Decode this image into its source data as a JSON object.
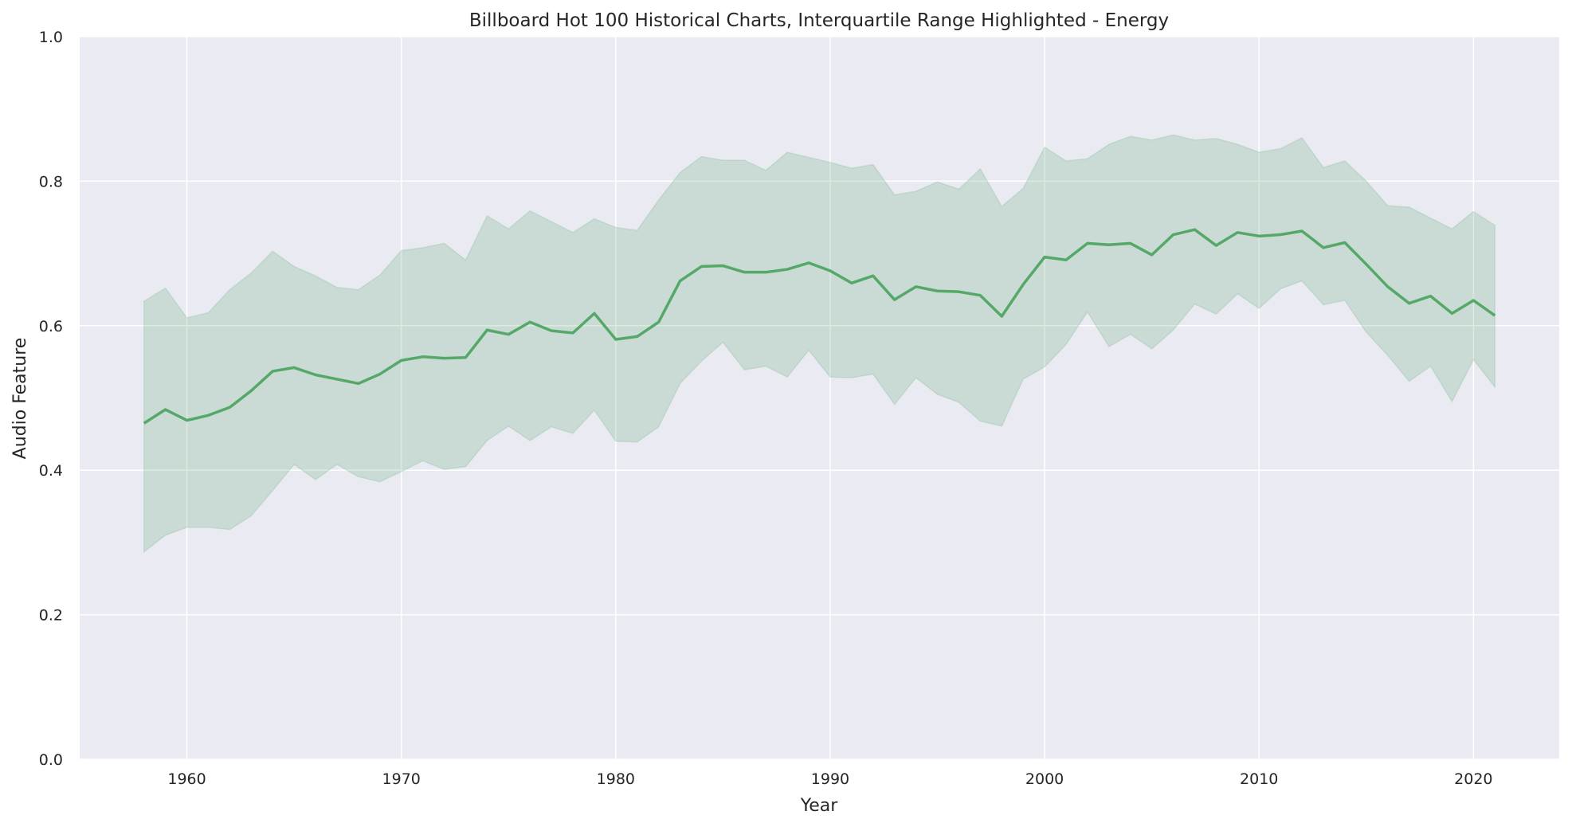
{
  "chart_data": {
    "type": "line",
    "title": "Billboard Hot 100 Historical Charts, Interquartile Range Highlighted - Energy",
    "xlabel": "Year",
    "ylabel": "Audio Feature",
    "xlim": [
      1955,
      2024
    ],
    "ylim": [
      0.0,
      1.0
    ],
    "xticks": [
      1960,
      1970,
      1980,
      1990,
      2000,
      2010,
      2020
    ],
    "xtick_labels": [
      "1960",
      "1970",
      "1980",
      "1990",
      "2000",
      "2010",
      "2020"
    ],
    "yticks": [
      0.0,
      0.2,
      0.4,
      0.6,
      0.8,
      1.0
    ],
    "ytick_labels": [
      "0.0",
      "0.2",
      "0.4",
      "0.6",
      "0.8",
      "1.0"
    ],
    "grid": true,
    "colors": {
      "background": "#eaeaf2",
      "grid": "#ffffff",
      "line": "#55a868",
      "band": "#55a868"
    },
    "x": [
      1958,
      1959,
      1960,
      1961,
      1962,
      1963,
      1964,
      1965,
      1966,
      1967,
      1968,
      1969,
      1970,
      1971,
      1972,
      1973,
      1974,
      1975,
      1976,
      1977,
      1978,
      1979,
      1980,
      1981,
      1982,
      1983,
      1984,
      1985,
      1986,
      1987,
      1988,
      1989,
      1990,
      1991,
      1992,
      1993,
      1994,
      1995,
      1996,
      1997,
      1998,
      1999,
      2000,
      2001,
      2002,
      2003,
      2004,
      2005,
      2006,
      2007,
      2008,
      2009,
      2010,
      2011,
      2012,
      2013,
      2014,
      2015,
      2016,
      2017,
      2018,
      2019,
      2020,
      2021
    ],
    "series": [
      {
        "role": "median",
        "values": [
          0.465,
          0.484,
          0.469,
          0.476,
          0.487,
          0.51,
          0.537,
          0.542,
          0.532,
          0.526,
          0.52,
          0.533,
          0.552,
          0.557,
          0.555,
          0.556,
          0.594,
          0.588,
          0.605,
          0.593,
          0.59,
          0.617,
          0.581,
          0.585,
          0.605,
          0.662,
          0.682,
          0.683,
          0.674,
          0.674,
          0.678,
          0.687,
          0.676,
          0.659,
          0.669,
          0.636,
          0.654,
          0.648,
          0.647,
          0.642,
          0.613,
          0.657,
          0.695,
          0.691,
          0.714,
          0.712,
          0.714,
          0.698,
          0.726,
          0.733,
          0.711,
          0.729,
          0.724,
          0.726,
          0.731,
          0.708,
          0.715,
          0.685,
          0.654,
          0.631,
          0.641,
          0.617,
          0.635,
          0.614
        ]
      },
      {
        "role": "upper-quartile",
        "values": [
          0.634,
          0.652,
          0.611,
          0.618,
          0.65,
          0.673,
          0.703,
          0.682,
          0.669,
          0.653,
          0.65,
          0.67,
          0.704,
          0.708,
          0.714,
          0.691,
          0.752,
          0.734,
          0.759,
          0.744,
          0.729,
          0.748,
          0.736,
          0.732,
          0.774,
          0.812,
          0.834,
          0.829,
          0.829,
          0.815,
          0.84,
          0.833,
          0.826,
          0.818,
          0.823,
          0.781,
          0.786,
          0.799,
          0.789,
          0.817,
          0.765,
          0.79,
          0.847,
          0.828,
          0.831,
          0.851,
          0.862,
          0.857,
          0.864,
          0.857,
          0.859,
          0.851,
          0.84,
          0.845,
          0.86,
          0.819,
          0.828,
          0.8,
          0.766,
          0.764,
          0.749,
          0.734,
          0.758,
          0.739
        ]
      },
      {
        "role": "lower-quartile",
        "values": [
          0.287,
          0.31,
          0.321,
          0.321,
          0.318,
          0.337,
          0.372,
          0.408,
          0.387,
          0.408,
          0.391,
          0.384,
          0.398,
          0.413,
          0.401,
          0.405,
          0.441,
          0.461,
          0.441,
          0.46,
          0.451,
          0.483,
          0.44,
          0.439,
          0.46,
          0.52,
          0.551,
          0.577,
          0.539,
          0.544,
          0.529,
          0.566,
          0.529,
          0.528,
          0.533,
          0.491,
          0.528,
          0.505,
          0.494,
          0.468,
          0.461,
          0.526,
          0.543,
          0.574,
          0.619,
          0.571,
          0.588,
          0.568,
          0.594,
          0.63,
          0.616,
          0.644,
          0.624,
          0.651,
          0.662,
          0.629,
          0.635,
          0.591,
          0.559,
          0.523,
          0.544,
          0.495,
          0.553,
          0.515
        ]
      }
    ]
  }
}
